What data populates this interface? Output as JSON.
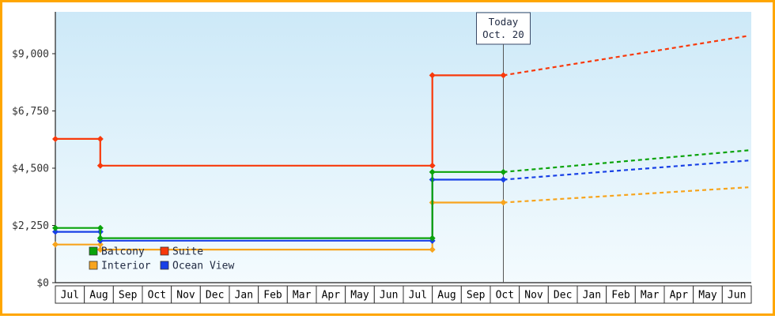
{
  "chart_data": {
    "type": "line",
    "subtype": "step-line-with-projection",
    "title": "",
    "xlabel": "",
    "ylabel": "",
    "x_categories": [
      "Jul",
      "Aug",
      "Sep",
      "Oct",
      "Nov",
      "Dec",
      "Jan",
      "Feb",
      "Mar",
      "Apr",
      "May",
      "Jun",
      "Jul",
      "Aug",
      "Sep",
      "Oct",
      "Nov",
      "Dec",
      "Jan",
      "Feb",
      "Mar",
      "Apr",
      "May",
      "Jun"
    ],
    "y_ticks": [
      {
        "value": 0,
        "label": "$0"
      },
      {
        "value": 2250,
        "label": "$2,250"
      },
      {
        "value": 4500,
        "label": "$4,500"
      },
      {
        "value": 6750,
        "label": "$6,750"
      },
      {
        "value": 9000,
        "label": "$9,000"
      }
    ],
    "ylim": [
      0,
      10600
    ],
    "grid": false,
    "today": {
      "x_index": 15.45,
      "label_line1": "Today",
      "label_line2": "Oct. 20"
    },
    "series": [
      {
        "name": "Balcony",
        "color": "#0aa30a",
        "solid": [
          [
            0,
            2150
          ],
          [
            1.55,
            2150
          ],
          [
            1.55,
            1750
          ],
          [
            13,
            1750
          ],
          [
            13,
            4350
          ],
          [
            15.45,
            4350
          ]
        ],
        "projected": [
          [
            15.45,
            4350
          ],
          [
            23.9,
            5200
          ]
        ]
      },
      {
        "name": "Suite",
        "color": "#f8390b",
        "solid": [
          [
            0,
            5650
          ],
          [
            1.55,
            5650
          ],
          [
            1.55,
            4600
          ],
          [
            13,
            4600
          ],
          [
            13,
            8150
          ],
          [
            15.45,
            8150
          ]
        ],
        "projected": [
          [
            15.45,
            8150
          ],
          [
            23.9,
            9700
          ]
        ]
      },
      {
        "name": "Interior",
        "color": "#f7a41d",
        "solid": [
          [
            0,
            1500
          ],
          [
            1.55,
            1500
          ],
          [
            1.55,
            1300
          ],
          [
            13,
            1300
          ],
          [
            13,
            3150
          ],
          [
            15.45,
            3150
          ]
        ],
        "projected": [
          [
            15.45,
            3150
          ],
          [
            23.9,
            3750
          ]
        ]
      },
      {
        "name": "Ocean View",
        "color": "#1840e6",
        "solid": [
          [
            0,
            2000
          ],
          [
            1.55,
            2000
          ],
          [
            1.55,
            1650
          ],
          [
            13,
            1650
          ],
          [
            13,
            4050
          ],
          [
            15.45,
            4050
          ]
        ],
        "projected": [
          [
            15.45,
            4050
          ],
          [
            23.9,
            4800
          ]
        ]
      }
    ],
    "legend": {
      "position": "bottom-left-inside",
      "rows": [
        [
          "Balcony",
          "Suite"
        ],
        [
          "Interior",
          "Ocean View"
        ]
      ]
    }
  },
  "colors": {
    "outer_border": "#ffa600",
    "plot_bg_top": "#cde9f8",
    "plot_bg_bottom": "#f4fbfe",
    "axis": "#222222",
    "axis_text": "#333333",
    "month_cell_border": "#333333",
    "month_text": "#000000",
    "today_line": "#555555",
    "today_box_border": "#3a4a68",
    "today_box_bg": "#ffffff",
    "label_text": "#222c44"
  }
}
